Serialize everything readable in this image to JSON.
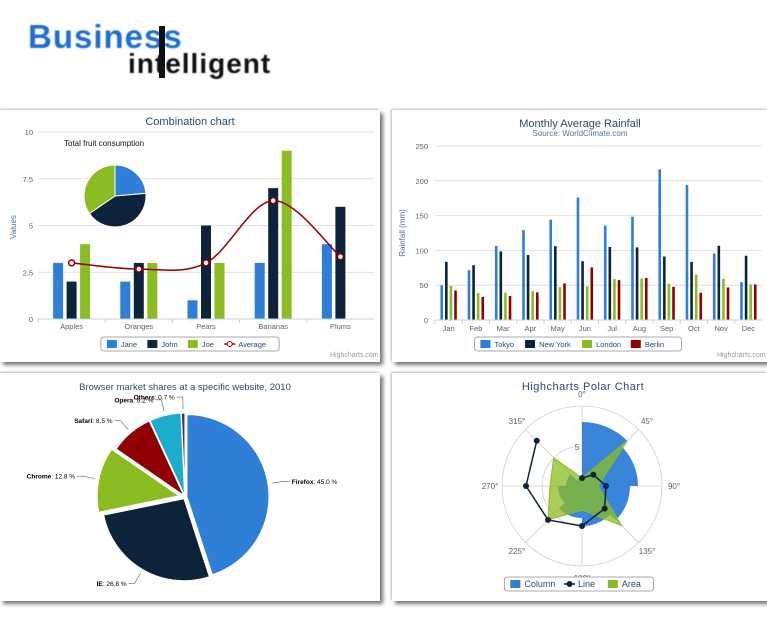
{
  "logo": {
    "line1": "Business",
    "line2": "intelligent"
  },
  "credits": "Highcharts.com",
  "chart_data": [
    {
      "type": "bar",
      "title": "Combination chart",
      "ylabel": "Values",
      "xlabel": "",
      "categories": [
        "Apples",
        "Oranges",
        "Pears",
        "Bananas",
        "Plums"
      ],
      "ylim": [
        0,
        10
      ],
      "yticks": [
        "0",
        "2.5",
        "5",
        "7.5",
        "10"
      ],
      "series": [
        {
          "name": "Jane",
          "values": [
            3,
            2,
            1,
            3,
            4
          ],
          "color": "#2f7ed8"
        },
        {
          "name": "John",
          "values": [
            2,
            3,
            5,
            7,
            6
          ],
          "color": "#0d233a"
        },
        {
          "name": "Joe",
          "values": [
            4,
            3,
            3,
            9,
            0
          ],
          "color": "#8bbc21"
        },
        {
          "name": "Average",
          "type": "spline",
          "values": [
            3,
            2.67,
            3,
            6.33,
            3.33
          ],
          "color": "#910000"
        }
      ],
      "pie": {
        "title": "Total fruit consumption",
        "slices": [
          {
            "value": 13,
            "color": "#2f7ed8"
          },
          {
            "value": 23,
            "color": "#0d233a"
          },
          {
            "value": 19,
            "color": "#8bbc21"
          }
        ]
      },
      "grid": true,
      "legend": "bottom-center"
    },
    {
      "type": "bar",
      "title": "Monthly Average Rainfall",
      "subtitle": "Source: WorldClimate.com",
      "ylabel": "Rainfall (mm)",
      "xlabel": "",
      "categories": [
        "Jan",
        "Feb",
        "Mar",
        "Apr",
        "May",
        "Jun",
        "Jul",
        "Aug",
        "Sep",
        "Oct",
        "Nov",
        "Dec"
      ],
      "ylim": [
        0,
        250
      ],
      "yticks": [
        "0",
        "50",
        "100",
        "150",
        "200",
        "250"
      ],
      "series": [
        {
          "name": "Tokyo",
          "values": [
            49.9,
            71.5,
            106.4,
            129.2,
            144.0,
            176.0,
            135.6,
            148.5,
            216.4,
            194.1,
            95.6,
            54.4
          ],
          "color": "#2f7ed8"
        },
        {
          "name": "New York",
          "values": [
            83.6,
            78.8,
            98.5,
            93.4,
            106.0,
            84.5,
            105.0,
            104.3,
            91.2,
            83.5,
            106.6,
            92.3
          ],
          "color": "#0d233a"
        },
        {
          "name": "London",
          "values": [
            48.9,
            38.8,
            39.3,
            41.4,
            47.0,
            48.3,
            59.0,
            59.6,
            52.4,
            65.2,
            59.3,
            51.2
          ],
          "color": "#8bbc21"
        },
        {
          "name": "Berlin",
          "values": [
            42.4,
            33.2,
            34.5,
            39.7,
            52.6,
            75.5,
            57.4,
            60.4,
            47.6,
            39.1,
            46.8,
            51.1
          ],
          "color": "#910000"
        }
      ],
      "grid": true,
      "legend": "bottom-center"
    },
    {
      "type": "pie",
      "title": "Browser market shares at a specific website, 2010",
      "slices": [
        {
          "name": "Firefox",
          "value": 45.0,
          "label": "45.0 %",
          "color": "#2f7ed8"
        },
        {
          "name": "IE",
          "value": 26.8,
          "label": "26.8 %",
          "color": "#0d233a"
        },
        {
          "name": "Chrome",
          "value": 12.8,
          "label": "12.8 %",
          "color": "#8bbc21",
          "sliced": true
        },
        {
          "name": "Safari",
          "value": 8.5,
          "label": "8.5 %",
          "color": "#910000"
        },
        {
          "name": "Opera",
          "value": 6.2,
          "label": "6.2 %",
          "color": "#1aadce"
        },
        {
          "name": "Others",
          "value": 0.7,
          "label": "0.7 %",
          "color": "#492970"
        }
      ]
    },
    {
      "type": "polar",
      "title": "Highcharts Polar Chart",
      "angle_labels": [
        "0°",
        "45°",
        "90°",
        "135°",
        "180°",
        "225°",
        "270°",
        "315°"
      ],
      "radial_tick": "5",
      "rmax": 10,
      "series": [
        {
          "name": "Column",
          "type": "column",
          "values": [
            8,
            7,
            6,
            5,
            4,
            3,
            2,
            1
          ],
          "color": "#2f7ed8"
        },
        {
          "name": "Line",
          "type": "line",
          "values": [
            1,
            2,
            3,
            4,
            5,
            6,
            7,
            8
          ],
          "color": "#0d233a"
        },
        {
          "name": "Area",
          "type": "area",
          "values": [
            1,
            8,
            2,
            7,
            3,
            6,
            4,
            5
          ],
          "color": "#8bbc21"
        }
      ],
      "legend": "bottom-center"
    }
  ]
}
